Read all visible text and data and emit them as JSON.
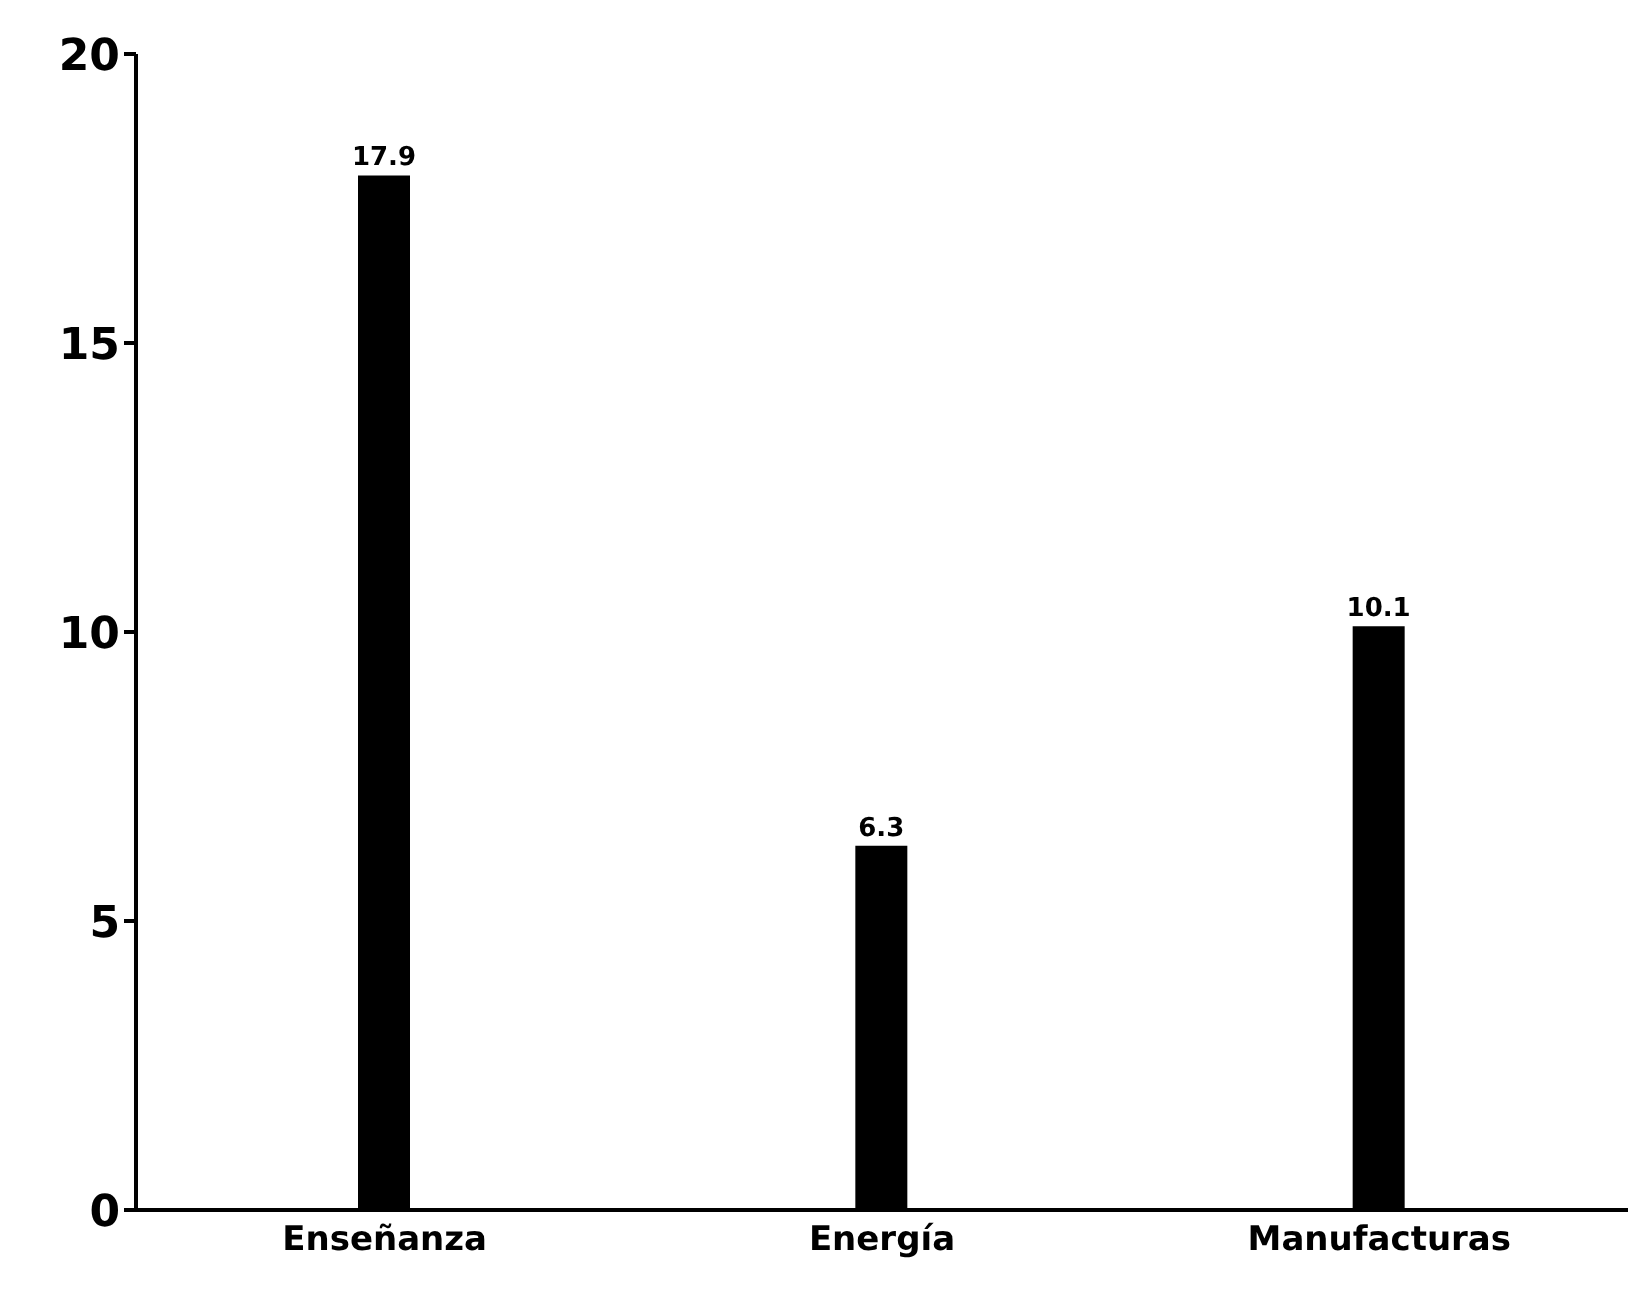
{
  "chart_data": {
    "type": "bar",
    "categories": [
      "Enseñanza",
      "Energía",
      "Manufacturas"
    ],
    "values": [
      17.9,
      6.3,
      10.1
    ],
    "color": "#000000",
    "ylim": [
      0,
      20
    ],
    "yticks": [
      0,
      5,
      10,
      15,
      20
    ],
    "grid": false,
    "data_labels": true
  }
}
